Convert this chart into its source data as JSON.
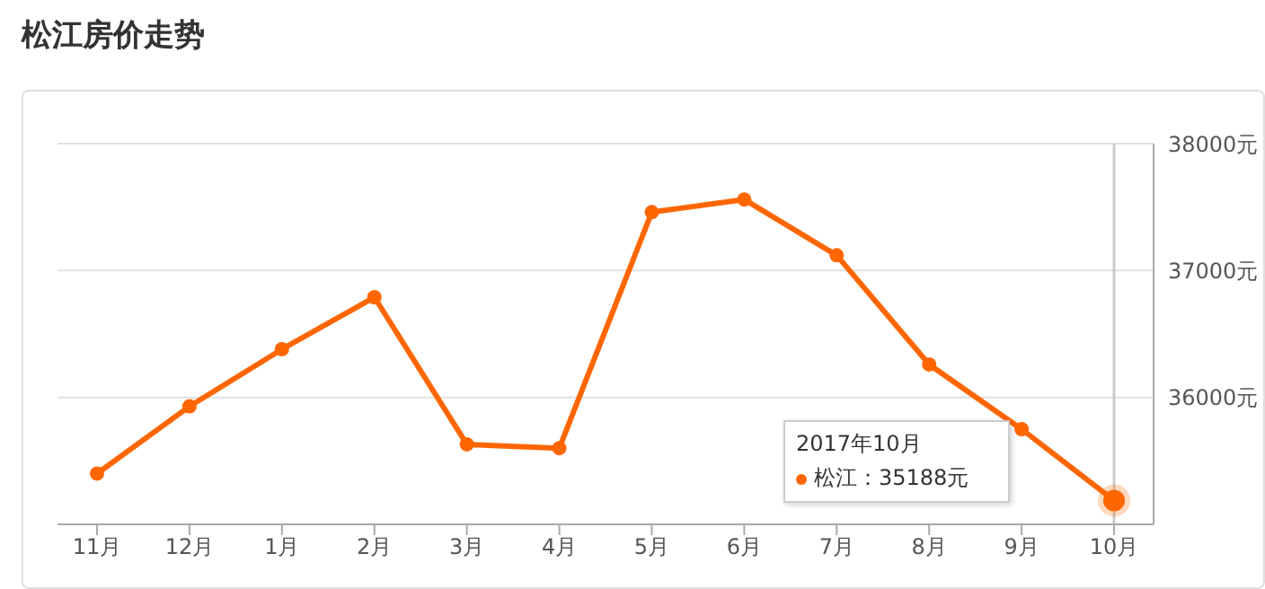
{
  "chart_data": {
    "type": "line",
    "title": "松江房价走势",
    "categories": [
      "11月",
      "12月",
      "1月",
      "2月",
      "3月",
      "4月",
      "5月",
      "6月",
      "7月",
      "8月",
      "9月",
      "10月"
    ],
    "series": [
      {
        "color": "#ff6600",
        "values": [
          35400,
          35930,
          36380,
          36790,
          35630,
          35600,
          37460,
          37560,
          37120,
          36260,
          35750,
          35188
        ]
      }
    ],
    "ylim": [
      35000,
      38000
    ],
    "yticks": [
      {
        "value": 35000,
        "label": null
      },
      {
        "value": 36000,
        "label": "36000元"
      },
      {
        "value": 37000,
        "label": "37000元"
      },
      {
        "value": 38000,
        "label": "38000元"
      }
    ],
    "grid": "y",
    "marker": "circle",
    "line_style": "solid",
    "legend": false,
    "ref_lines": [
      {
        "axis": "x",
        "value": "10月",
        "color": "#cccccc"
      }
    ],
    "annotations": [
      "2017年10月",
      "松江：35188元"
    ]
  }
}
